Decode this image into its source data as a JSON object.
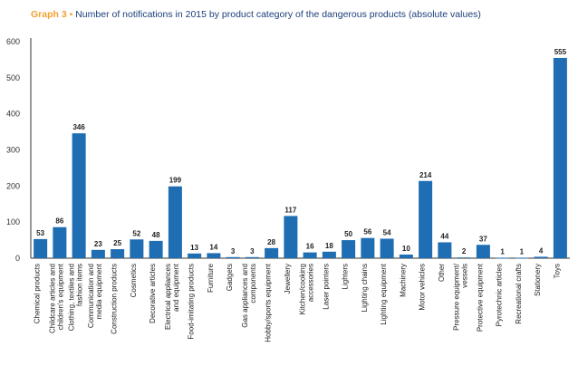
{
  "chart_data": {
    "type": "bar",
    "title_label": "Graph 3",
    "title_separator": "•",
    "title": "Number of notifications in 2015 by product category of the dangerous products (absolute values)",
    "xlabel": "",
    "ylabel": "",
    "ylim": [
      0,
      600
    ],
    "yticks": [
      "0",
      "100",
      "200",
      "300",
      "400",
      "500",
      "600"
    ],
    "grid": false,
    "bar_color": "#1f6db3",
    "categories": [
      [
        "Chemical products"
      ],
      [
        "Childcare articles and",
        "children's equipment"
      ],
      [
        "Clothing, textiles and",
        "fashion items"
      ],
      [
        "Communication and",
        "media equipment"
      ],
      [
        "Construction products"
      ],
      [
        "Cosmetics"
      ],
      [
        "Decorative articles"
      ],
      [
        "Electrical appliances",
        "and equipment"
      ],
      [
        "Food-imitating products"
      ],
      [
        "Furniture"
      ],
      [
        "Gadgets"
      ],
      [
        "Gas appliances and",
        "components"
      ],
      [
        "Hobby/sports equipment"
      ],
      [
        "Jewellery"
      ],
      [
        "Kitchen/cooking",
        "accessories"
      ],
      [
        "Laser pointers"
      ],
      [
        "Lighters"
      ],
      [
        "Lighting chains"
      ],
      [
        "Lighting equipment"
      ],
      [
        "Machinery"
      ],
      [
        "Motor vehicles"
      ],
      [
        "Other"
      ],
      [
        "Pressure equipment/",
        "vessels"
      ],
      [
        "Protective equipment"
      ],
      [
        "Pyrotechnic articles"
      ],
      [
        "Recreational crafts"
      ],
      [
        "Stationery"
      ],
      [
        "Toys"
      ]
    ],
    "values": [
      53,
      86,
      346,
      23,
      25,
      52,
      48,
      199,
      13,
      14,
      3,
      3,
      28,
      117,
      16,
      18,
      50,
      56,
      54,
      10,
      214,
      44,
      2,
      37,
      1,
      1,
      4,
      555
    ]
  }
}
